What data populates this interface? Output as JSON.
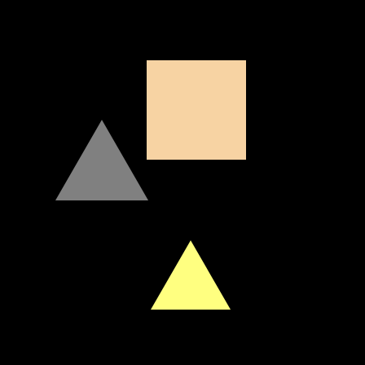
{
  "scene": {
    "background_color": "#000000",
    "shapes": [
      {
        "name": "peach-square",
        "kind": "square",
        "color": "#F7D3A3"
      },
      {
        "name": "gray-triangle",
        "kind": "triangle",
        "color": "#808080"
      },
      {
        "name": "yellow-triangle",
        "kind": "triangle",
        "color": "#FFFF80"
      }
    ]
  }
}
